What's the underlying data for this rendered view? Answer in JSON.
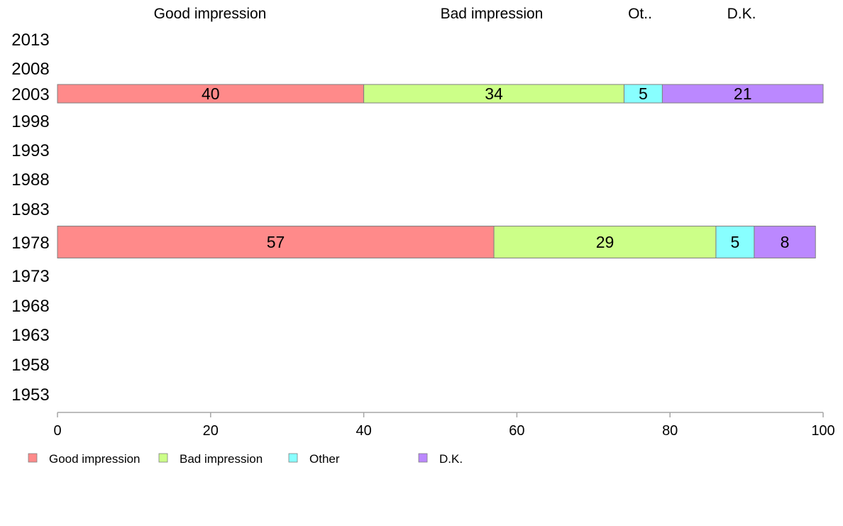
{
  "chart_data": {
    "type": "bar",
    "orientation": "horizontal",
    "stacked": true,
    "categories": [
      "2013",
      "2008",
      "2003",
      "1998",
      "1993",
      "1988",
      "1983",
      "1978",
      "1973",
      "1968",
      "1963",
      "1958",
      "1953"
    ],
    "series": [
      {
        "name": "Good impression",
        "color": "#ff8a8a",
        "values": [
          null,
          null,
          40,
          null,
          null,
          null,
          null,
          57,
          null,
          null,
          null,
          null,
          null
        ]
      },
      {
        "name": "Bad impression",
        "color": "#ccff88",
        "values": [
          null,
          null,
          34,
          null,
          null,
          null,
          null,
          29,
          null,
          null,
          null,
          null,
          null
        ]
      },
      {
        "name": "Other",
        "color": "#88ffff",
        "values": [
          null,
          null,
          5,
          null,
          null,
          null,
          null,
          5,
          null,
          null,
          null,
          null,
          null
        ]
      },
      {
        "name": "D.K.",
        "color": "#bb88ff",
        "values": [
          null,
          null,
          21,
          null,
          null,
          null,
          null,
          8,
          null,
          null,
          null,
          null,
          null
        ]
      }
    ],
    "top_labels": [
      "Good impression",
      "Bad impression",
      "Ot..",
      "D.K."
    ],
    "xlim": [
      0,
      100
    ],
    "xticks": [
      0,
      20,
      40,
      60,
      80,
      100
    ],
    "grid": false,
    "legend_position": "bottom-left"
  }
}
